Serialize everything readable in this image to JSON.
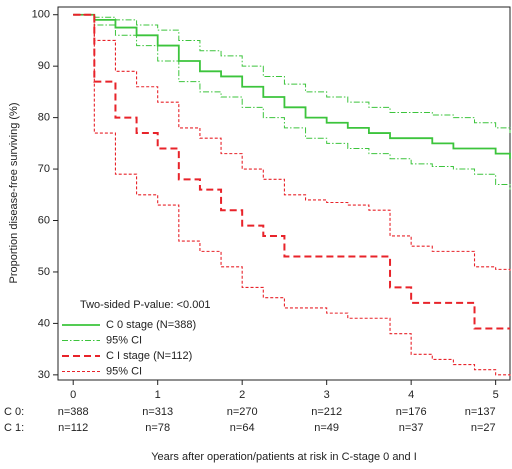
{
  "chart_data": {
    "type": "line",
    "step": true,
    "y_label": "Proportion disease-free surviving (%)",
    "x_label": "Years after operation/patients at risk in C-stage 0 and I",
    "annotation": "Two-sided P-value: <0.001",
    "xlim": [
      -0.18,
      5.17
    ],
    "ylim": [
      29,
      101.5
    ],
    "xticks": [
      0,
      1,
      2,
      3,
      4,
      5
    ],
    "yticks": [
      30,
      40,
      50,
      60,
      70,
      80,
      90,
      100
    ],
    "x": [
      0,
      0.25,
      0.5,
      0.75,
      1,
      1.25,
      1.5,
      1.75,
      2,
      2.25,
      2.5,
      2.75,
      3,
      3.25,
      3.5,
      3.75,
      4,
      4.25,
      4.5,
      4.75,
      5,
      5.17
    ],
    "series": [
      {
        "name": "C 0 stage (N=388)",
        "color": "#3cc43c",
        "style": "solid",
        "values": [
          100,
          99,
          97.5,
          96,
          94,
          91,
          89,
          88,
          86,
          84,
          82,
          80,
          79,
          78,
          77,
          76,
          76,
          75,
          74,
          74,
          73,
          72
        ]
      },
      {
        "name": "95% CI",
        "color": "#3cc43c",
        "style": "dashdot",
        "values": [
          100,
          99.5,
          99,
          98,
          97,
          95,
          93,
          92,
          90,
          88,
          86.5,
          85,
          84,
          83,
          82,
          81,
          81,
          80.5,
          80,
          79,
          78,
          77
        ]
      },
      {
        "name": null,
        "color": "#3cc43c",
        "style": "dashdot",
        "values": [
          100,
          98,
          96,
          94,
          91,
          87,
          85,
          84,
          82,
          80,
          78,
          76,
          75,
          74,
          73,
          72,
          71,
          70.5,
          70,
          69,
          67,
          66
        ]
      },
      {
        "name": "C I stage (N=112)",
        "color": "#e8232a",
        "style": "dashed",
        "values": [
          100,
          87,
          80,
          77,
          74,
          68,
          66,
          62,
          59,
          57,
          53,
          53,
          53,
          53,
          53,
          47,
          44,
          44,
          44,
          39,
          39,
          39
        ]
      },
      {
        "name": "95% CI",
        "color": "#e8232a",
        "style": "dotted",
        "values": [
          100,
          95,
          89,
          86,
          83,
          78,
          76,
          73,
          70,
          68,
          65,
          64,
          63.5,
          63,
          62,
          57,
          55,
          54,
          54,
          51,
          50.5,
          50
        ]
      },
      {
        "name": null,
        "color": "#e8232a",
        "style": "dotted",
        "values": [
          100,
          77,
          69,
          65,
          63,
          56,
          54,
          51,
          47,
          45,
          43,
          43,
          42,
          41,
          41,
          38,
          34,
          33,
          32,
          31,
          30,
          29.5
        ]
      }
    ],
    "at_risk": [
      {
        "label": "C 0:",
        "values": [
          "n=388",
          "n=313",
          "n=270",
          "n=212",
          "n=176",
          "n=137"
        ]
      },
      {
        "label": "C 1:",
        "values": [
          "n=112",
          "n=78",
          "n=64",
          "n=49",
          "n=37",
          "n=27"
        ]
      }
    ]
  }
}
